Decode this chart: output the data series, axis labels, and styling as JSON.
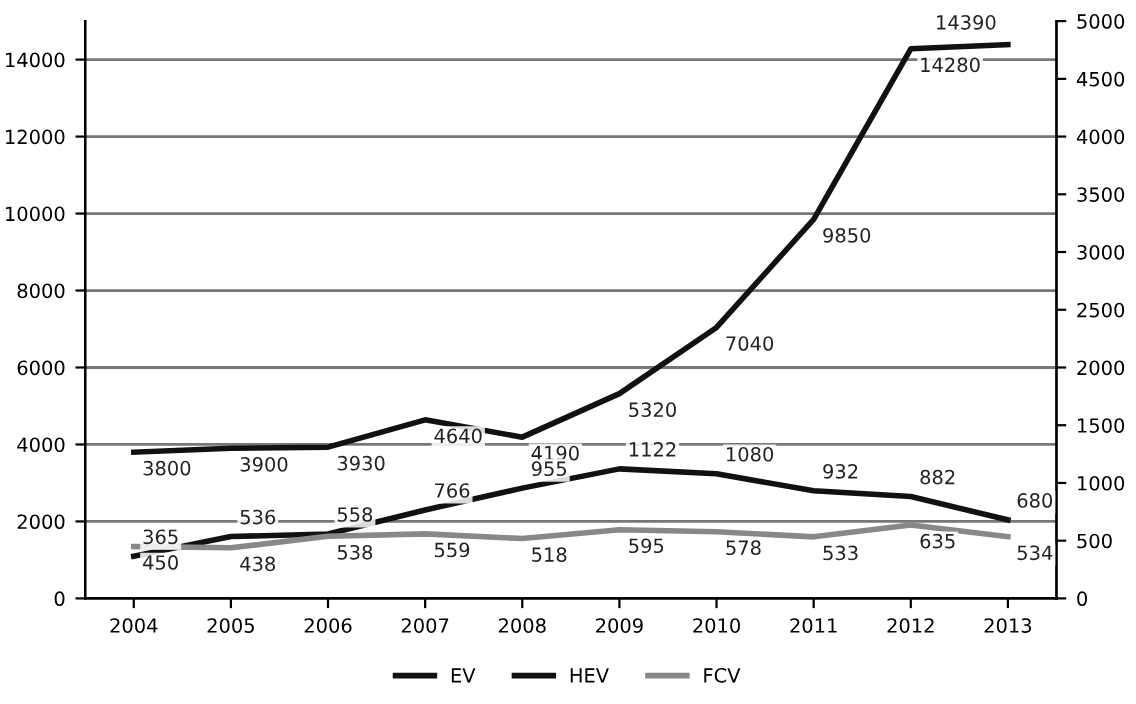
{
  "chart_data": {
    "type": "line",
    "categories": [
      "2004",
      "2005",
      "2006",
      "2007",
      "2008",
      "2009",
      "2010",
      "2011",
      "2012",
      "2013"
    ],
    "series": [
      {
        "name": "EV",
        "color": "#111111",
        "values": [
          3800,
          3900,
          3930,
          4640,
          4190,
          5320,
          7040,
          9850,
          14280,
          14390
        ]
      },
      {
        "name": "HEV",
        "color": "#111111",
        "axis": "y2",
        "values": [
          365,
          536,
          558,
          766,
          955,
          1122,
          1080,
          932,
          882,
          680
        ]
      },
      {
        "name": "FCV",
        "color": "#888888",
        "axis": "y2",
        "values": [
          450,
          438,
          538,
          559,
          518,
          595,
          578,
          533,
          635,
          534
        ]
      }
    ],
    "ylim": [
      0,
      15000
    ],
    "yticks": [
      0,
      2000,
      4000,
      6000,
      8000,
      10000,
      12000,
      14000
    ],
    "y2lim": [
      0,
      5000
    ],
    "y2ticks": [
      0,
      500,
      1000,
      1500,
      2000,
      2500,
      3000,
      3500,
      4000,
      4500,
      5000
    ],
    "grid": "y",
    "legend": "bottom",
    "data_labels": true,
    "marker": "none",
    "line_style": "solid"
  }
}
